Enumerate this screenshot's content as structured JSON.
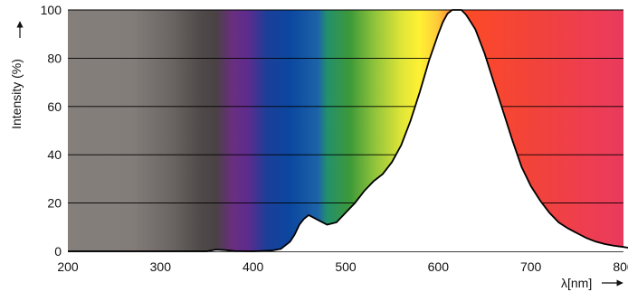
{
  "chart_data": {
    "type": "area",
    "xlabel": "λ[nm]",
    "ylabel": "Intensity (%)",
    "xlim": [
      200,
      800
    ],
    "ylim": [
      0,
      100
    ],
    "grid": "horizontal",
    "x_ticks": [
      "200",
      "300",
      "400",
      "500",
      "600",
      "700",
      "800"
    ],
    "y_ticks": [
      "0",
      "20",
      "40",
      "60",
      "80",
      "100"
    ],
    "series": [
      {
        "x": [
          200,
          350,
          360,
          370,
          380,
          400,
          420,
          430,
          440,
          445,
          450,
          455,
          460,
          465,
          470,
          480,
          490,
          500,
          510,
          520,
          530,
          540,
          550,
          560,
          570,
          580,
          590,
          600,
          605,
          610,
          615,
          620,
          625,
          630,
          635,
          640,
          645,
          650,
          660,
          670,
          680,
          690,
          700,
          710,
          720,
          730,
          740,
          750,
          760,
          770,
          780,
          790,
          800,
          805
        ],
        "y": [
          0,
          0,
          0.7,
          0.5,
          0.1,
          0,
          0.3,
          1,
          4,
          7,
          11,
          13.5,
          15,
          14,
          13,
          11,
          12,
          16,
          20,
          25,
          29,
          32,
          37,
          44,
          54,
          66,
          79,
          90,
          95,
          98.5,
          100,
          100,
          100,
          98,
          95,
          92,
          87,
          82,
          70,
          58,
          46,
          35,
          27,
          21,
          16,
          12,
          9.5,
          7.5,
          5.5,
          4,
          3,
          2.3,
          1.8,
          1.5
        ]
      }
    ]
  },
  "colors": {
    "spectrum_stops": [
      {
        "nm": 200,
        "color": "#857f7b"
      },
      {
        "nm": 270,
        "color": "#837d79"
      },
      {
        "nm": 310,
        "color": "#6c6664"
      },
      {
        "nm": 345,
        "color": "#4e4948"
      },
      {
        "nm": 360,
        "color": "#4a4245"
      },
      {
        "nm": 378,
        "color": "#6a2e80"
      },
      {
        "nm": 395,
        "color": "#5c2c8e"
      },
      {
        "nm": 415,
        "color": "#1b3f98"
      },
      {
        "nm": 440,
        "color": "#0b47a0"
      },
      {
        "nm": 470,
        "color": "#1d63a8"
      },
      {
        "nm": 480,
        "color": "#23906c"
      },
      {
        "nm": 505,
        "color": "#3e9938"
      },
      {
        "nm": 530,
        "color": "#8cc23c"
      },
      {
        "nm": 560,
        "color": "#dfe538"
      },
      {
        "nm": 580,
        "color": "#fff133"
      },
      {
        "nm": 600,
        "color": "#ffc83a"
      },
      {
        "nm": 615,
        "color": "#ff7f30"
      },
      {
        "nm": 630,
        "color": "#fd4a28"
      },
      {
        "nm": 700,
        "color": "#f2433a"
      },
      {
        "nm": 760,
        "color": "#ee3e50"
      },
      {
        "nm": 805,
        "color": "#e93a5e"
      }
    ],
    "grid": "#000000",
    "curve": "#000000",
    "under_curve": "#ffffff"
  }
}
